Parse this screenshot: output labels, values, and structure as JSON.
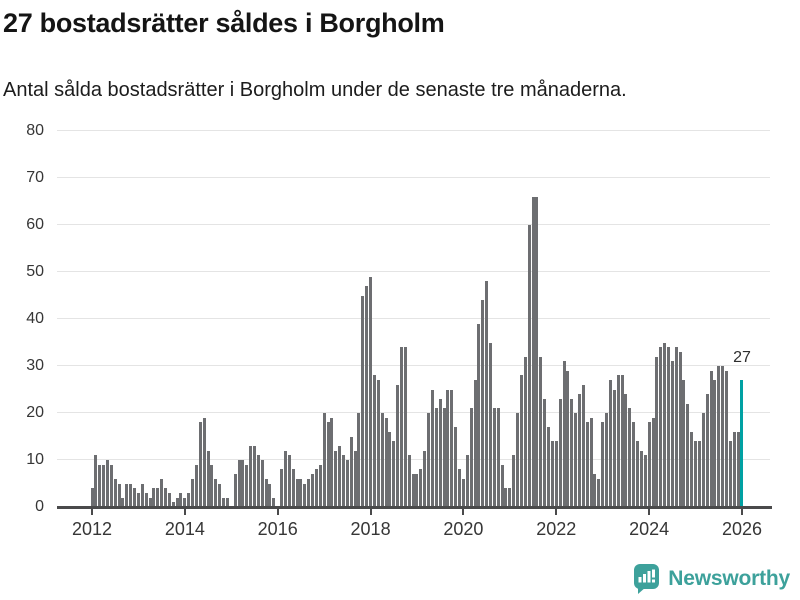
{
  "header": {
    "title": "27 bostadsrätter såldes i Borgholm",
    "subtitle": "Antal sålda bostadsrätter i Borgholm under de senaste tre månaderna."
  },
  "chart_data": {
    "type": "bar",
    "title": "27 bostadsrätter såldes i Borgholm",
    "subtitle": "Antal sålda bostadsrätter i Borgholm under de senaste tre månaderna.",
    "x_start": "2012-01",
    "x_end": "2026-01",
    "x_tick_labels": [
      "2012",
      "2014",
      "2016",
      "2018",
      "2020",
      "2022",
      "2024",
      "2026"
    ],
    "y_ticks": [
      0,
      10,
      20,
      30,
      40,
      50,
      60,
      70,
      80
    ],
    "ylim": [
      0,
      80
    ],
    "grid": "horizontal",
    "values": [
      4,
      11,
      9,
      9,
      10,
      9,
      6,
      5,
      2,
      5,
      5,
      4,
      3,
      5,
      3,
      2,
      4,
      4,
      6,
      4,
      3,
      1,
      2,
      3,
      2,
      3,
      6,
      9,
      18,
      19,
      12,
      9,
      6,
      5,
      2,
      2,
      0,
      7,
      10,
      10,
      9,
      13,
      13,
      11,
      10,
      6,
      5,
      2,
      0,
      8,
      12,
      11,
      8,
      6,
      6,
      5,
      6,
      7,
      8,
      9,
      20,
      18,
      19,
      12,
      13,
      11,
      10,
      15,
      12,
      20,
      45,
      47,
      49,
      28,
      27,
      20,
      19,
      16,
      14,
      26,
      34,
      34,
      11,
      7,
      7,
      8,
      12,
      20,
      25,
      21,
      23,
      21,
      25,
      25,
      17,
      8,
      6,
      11,
      21,
      27,
      39,
      44,
      48,
      35,
      21,
      21,
      9,
      4,
      4,
      11,
      20,
      28,
      32,
      60,
      66,
      66,
      32,
      23,
      17,
      14,
      14,
      23,
      31,
      29,
      23,
      20,
      24,
      26,
      18,
      19,
      7,
      6,
      18,
      20,
      27,
      25,
      28,
      28,
      24,
      21,
      18,
      14,
      12,
      11,
      18,
      19,
      32,
      34,
      35,
      34,
      31,
      34,
      33,
      27,
      22,
      16,
      14,
      14,
      20,
      24,
      29,
      27,
      30,
      30,
      29,
      14,
      16,
      16,
      27
    ],
    "highlight_last_bar": true,
    "highlight_value_label": "27"
  },
  "annotation": {
    "label": "27"
  },
  "footer": {
    "brand": "Newsworthy"
  },
  "colors": {
    "bar": "#6d6e71",
    "highlight": "#00a1a3",
    "gridline": "#e4e4e4",
    "axis": "#4a4a4b",
    "tick_label": "#363636",
    "brand": "#3da19b"
  }
}
